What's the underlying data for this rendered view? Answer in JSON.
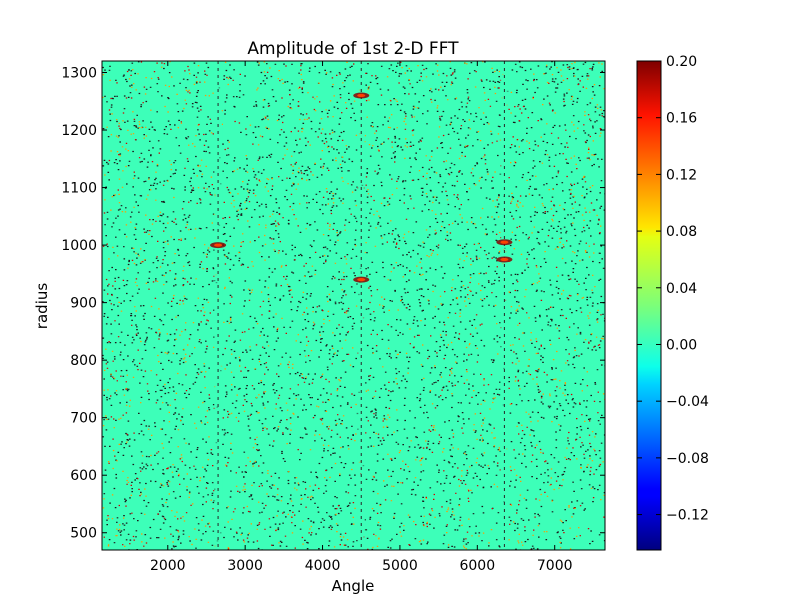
{
  "chart_data": {
    "type": "heatmap",
    "title": "Amplitude of 1st 2-D FFT",
    "xlabel": "Angle",
    "ylabel": "radius",
    "xlim": [
      1150,
      7650
    ],
    "ylim": [
      470,
      1320
    ],
    "x_ticks": [
      {
        "value": 2000,
        "label": "2000"
      },
      {
        "value": 3000,
        "label": "3000"
      },
      {
        "value": 4000,
        "label": "4000"
      },
      {
        "value": 5000,
        "label": "5000"
      },
      {
        "value": 6000,
        "label": "6000"
      },
      {
        "value": 7000,
        "label": "7000"
      }
    ],
    "y_ticks": [
      {
        "value": 500,
        "label": "500"
      },
      {
        "value": 600,
        "label": "600"
      },
      {
        "value": 700,
        "label": "700"
      },
      {
        "value": 800,
        "label": "800"
      },
      {
        "value": 900,
        "label": "900"
      },
      {
        "value": 1000,
        "label": "1000"
      },
      {
        "value": 1100,
        "label": "1100"
      },
      {
        "value": 1200,
        "label": "1200"
      },
      {
        "value": 1300,
        "label": "1300"
      }
    ],
    "colorbar": {
      "colormap": "jet",
      "range": [
        -0.145,
        0.2
      ],
      "ticks": [
        {
          "value": 0.2,
          "label": "0.20"
        },
        {
          "value": 0.16,
          "label": "0.16"
        },
        {
          "value": 0.12,
          "label": "0.12"
        },
        {
          "value": 0.08,
          "label": "0.08"
        },
        {
          "value": 0.04,
          "label": "0.04"
        },
        {
          "value": 0.0,
          "label": "0.00"
        },
        {
          "value": -0.04,
          "label": "−0.04"
        },
        {
          "value": -0.08,
          "label": "−0.08"
        },
        {
          "value": -0.12,
          "label": "−0.12"
        }
      ]
    },
    "features": {
      "background_value": 0.01,
      "vertical_bands_x": [
        2650,
        4500,
        6350
      ],
      "bright_spots": [
        {
          "x": 2650,
          "y": 1000
        },
        {
          "x": 4500,
          "y": 1260
        },
        {
          "x": 4500,
          "y": 940
        },
        {
          "x": 6350,
          "y": 1005
        },
        {
          "x": 6350,
          "y": 975
        }
      ],
      "grid": false
    }
  }
}
